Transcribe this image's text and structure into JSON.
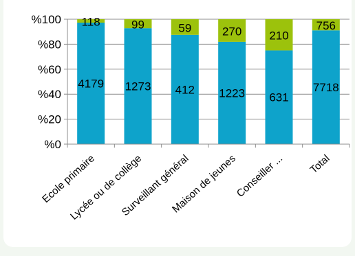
{
  "chart_data": {
    "type": "bar",
    "stacked": "percent",
    "categories": [
      "Ecole primaire",
      "Lycée ou de collège",
      "Surveillant général",
      "Maison de jeunes",
      "Conseiller ...",
      "Total"
    ],
    "series": [
      {
        "values": [
          4179,
          1273,
          412,
          1223,
          631,
          7718
        ],
        "color": "#0ea3cb"
      },
      {
        "values": [
          118,
          99,
          59,
          270,
          210,
          756
        ],
        "color": "#9cc20c"
      }
    ],
    "y_ticks": [
      "%0",
      "%20",
      "%40",
      "%60",
      "%80",
      "%100"
    ],
    "y_tick_values": [
      0,
      20,
      40,
      60,
      80,
      100
    ],
    "ylim": [
      0,
      100
    ],
    "grid": true,
    "legend": "none"
  }
}
